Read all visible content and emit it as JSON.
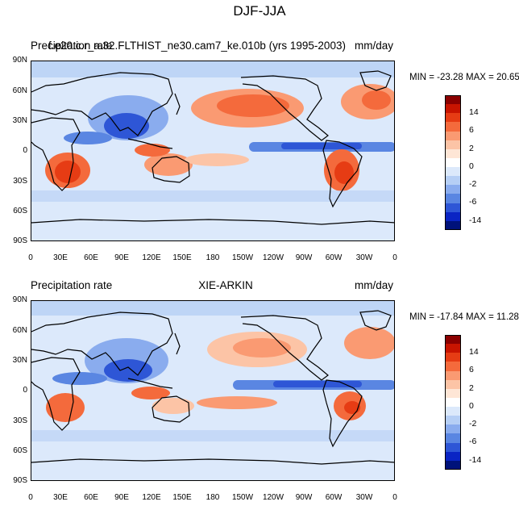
{
  "figure": {
    "title": "DJF-JJA"
  },
  "panels": [
    {
      "left_title": "Precipitation rate",
      "center_title": "f.e20.c.r_a.32.FLTHIST_ne30.cam7_ke.010b (yrs 1995-2003)",
      "units": "mm/day",
      "minmax": "MIN = -23.28  MAX =  20.65"
    },
    {
      "left_title": "Precipitation rate",
      "center_title": "XIE-ARKIN",
      "units": "mm/day",
      "minmax": "MIN = -17.84  MAX =  11.28"
    }
  ],
  "lat_labels": [
    "90N",
    "60N",
    "30N",
    "0",
    "30S",
    "60S",
    "90S"
  ],
  "lon_labels": [
    "0",
    "30E",
    "60E",
    "90E",
    "120E",
    "150E",
    "180",
    "150W",
    "120W",
    "90W",
    "60W",
    "30W",
    "0"
  ],
  "colorbar": {
    "labels": [
      "14",
      "6",
      "2",
      "0",
      "-2",
      "-6",
      "-14"
    ],
    "colors": [
      "#8b0000",
      "#c81400",
      "#e63c14",
      "#f46a3c",
      "#fa9a72",
      "#fcc4a6",
      "#fee6d6",
      "#ffffff",
      "#dce9fb",
      "#b6cff5",
      "#8aacee",
      "#5a86e2",
      "#2e56d6",
      "#0a24c4",
      "#00127a"
    ]
  },
  "palette": {
    "ocean_base": "#dce9fb",
    "wet_strong": "#e63c14",
    "wet_mid": "#f46a3c",
    "wet_light": "#fa9a72",
    "wet_pale": "#fcc4a6",
    "dry_strong": "#0a24c4",
    "dry_mid": "#2e56d6",
    "dry_light": "#8aacee",
    "dry_pale": "#b6cff5",
    "coast": "#000000"
  }
}
